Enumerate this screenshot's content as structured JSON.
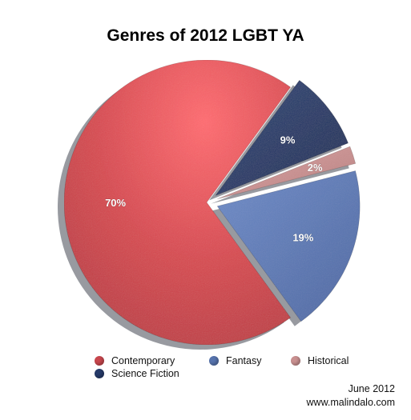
{
  "chart_data": {
    "type": "pie",
    "title": "Genres of 2012 LGBT YA",
    "categories": [
      "Contemporary",
      "Fantasy",
      "Historical",
      "Science Fiction"
    ],
    "values": [
      70,
      19,
      2,
      9
    ],
    "labels": [
      "70%",
      "19%",
      "2%",
      "9%"
    ],
    "colors": [
      "#c8464d",
      "#5673ad",
      "#c99090",
      "#263a69"
    ],
    "legend_position": "bottom"
  },
  "footer": {
    "date": "June 2012",
    "url": "www.malindalo.com"
  }
}
